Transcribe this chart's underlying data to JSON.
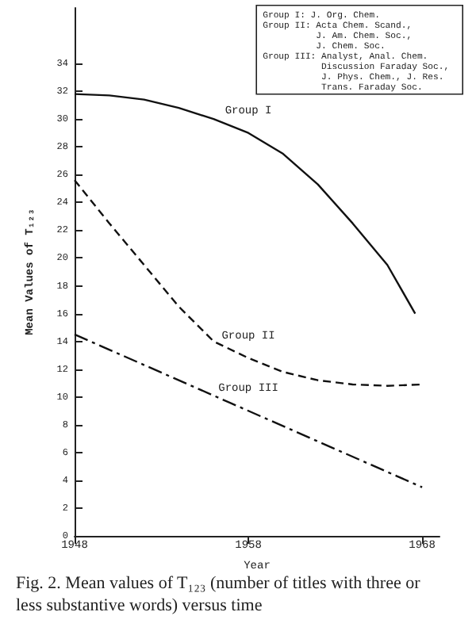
{
  "chart_data": {
    "type": "line",
    "title": "Fig. 2. Mean values of T₁₂₃ (number of titles with three or less substantive words) versus time",
    "xlabel": "Year",
    "ylabel": "Mean Values of T₁₂₃",
    "x": [
      1948,
      1950,
      1952,
      1954,
      1956,
      1958,
      1960,
      1962,
      1964,
      1966,
      1968
    ],
    "series": [
      {
        "name": "Group I",
        "color": "#111111",
        "line_style": "solid",
        "x": [
          1948,
          1950,
          1952,
          1954,
          1956,
          1958,
          1960,
          1962,
          1964,
          1966,
          1967.6
        ],
        "values": [
          31.8,
          31.7,
          31.4,
          30.8,
          30.0,
          29.0,
          27.5,
          25.3,
          22.5,
          19.5,
          16.0
        ]
      },
      {
        "name": "Group II",
        "color": "#111111",
        "line_style": "dashed",
        "values": [
          25.6,
          22.5,
          19.5,
          16.5,
          14.0,
          12.8,
          11.8,
          11.2,
          10.9,
          10.8,
          10.9
        ]
      },
      {
        "name": "Group III",
        "color": "#111111",
        "line_style": "dashdot",
        "x": [
          1948,
          1958,
          1968
        ],
        "values": [
          14.5,
          9.0,
          3.5
        ]
      }
    ],
    "annotations": [
      "Group I: J. Org. Chem.\nGroup II: Acta Chem. Scand.,\n          J. Am. Chem. Soc.,\n          J. Chem. Soc.\nGroup III: Analyst, Anal. Chem.\n           Discussion Faraday Soc.,\n           J. Phys. Chem., J. Res.\n           Trans. Faraday Soc."
    ],
    "xlim": [
      1948,
      1969
    ],
    "xticks": [
      {
        "value": 1948,
        "label": "1948"
      },
      {
        "value": 1958,
        "label": "1958"
      },
      {
        "value": 1968,
        "label": "1968"
      }
    ],
    "ylim": [
      0,
      38
    ],
    "yticks": [
      0,
      2,
      4,
      6,
      8,
      10,
      12,
      14,
      16,
      18,
      20,
      22,
      24,
      26,
      28,
      30,
      32,
      34
    ],
    "grid": false,
    "marker": "none"
  }
}
